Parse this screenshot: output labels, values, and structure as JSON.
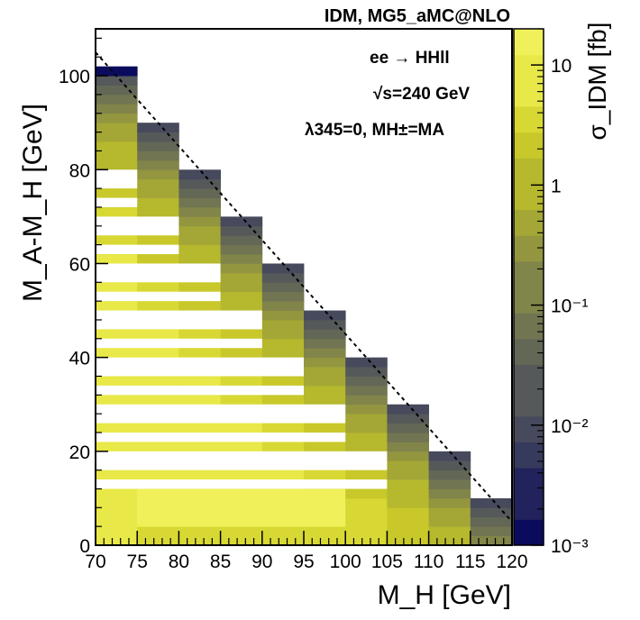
{
  "chart_data": {
    "type": "heatmap",
    "title": "IDM, MG5_aMC@NLO",
    "xlabel": "M_H [GeV]",
    "ylabel": "M_A-M_H [GeV]",
    "zlabel": "σ_IDM [fb]",
    "xlim": [
      70,
      120
    ],
    "ylim": [
      0,
      110
    ],
    "zlim": [
      0.001,
      20
    ],
    "x_ticks": [
      70,
      75,
      80,
      85,
      90,
      95,
      100,
      105,
      110,
      115,
      120
    ],
    "y_ticks": [
      0,
      20,
      40,
      60,
      80,
      100
    ],
    "z_ticks": [
      {
        "value": 10,
        "label": "10"
      },
      {
        "value": 1,
        "label": "1"
      },
      {
        "value": 0.1,
        "label": "10⁻¹"
      },
      {
        "value": 0.01,
        "label": "10⁻²"
      },
      {
        "value": 0.001,
        "label": "10⁻³"
      }
    ],
    "x_bin_width": 5,
    "y_bin_width": 2,
    "columns": [
      {
        "x": 70,
        "ymax": 102
      },
      {
        "x": 75,
        "ymax": 90
      },
      {
        "x": 80,
        "ymax": 80
      },
      {
        "x": 85,
        "ymax": 70
      },
      {
        "x": 90,
        "ymax": 60
      },
      {
        "x": 95,
        "ymax": 50
      },
      {
        "x": 100,
        "ymax": 40
      },
      {
        "x": 105,
        "ymax": 30
      },
      {
        "x": 110,
        "ymax": 20
      },
      {
        "x": 115,
        "ymax": 10
      }
    ],
    "empty_bins": [
      {
        "x_from": 70,
        "x_to": 75,
        "y_from": 76,
        "y_to": 80
      },
      {
        "x_from": 70,
        "x_to": 75,
        "y_from": 72,
        "y_to": 74
      },
      {
        "x_from": 70,
        "x_to": 80,
        "y_from": 66,
        "y_to": 70
      },
      {
        "x_from": 70,
        "x_to": 80,
        "y_from": 62,
        "y_to": 64
      },
      {
        "x_from": 70,
        "x_to": 85,
        "y_from": 56,
        "y_to": 60
      },
      {
        "x_from": 70,
        "x_to": 85,
        "y_from": 52,
        "y_to": 54
      },
      {
        "x_from": 70,
        "x_to": 90,
        "y_from": 46,
        "y_to": 50
      },
      {
        "x_from": 70,
        "x_to": 90,
        "y_from": 42,
        "y_to": 44
      },
      {
        "x_from": 70,
        "x_to": 95,
        "y_from": 36,
        "y_to": 40
      },
      {
        "x_from": 70,
        "x_to": 95,
        "y_from": 32,
        "y_to": 34
      },
      {
        "x_from": 70,
        "x_to": 100,
        "y_from": 26,
        "y_to": 30
      },
      {
        "x_from": 70,
        "x_to": 100,
        "y_from": 22,
        "y_to": 24
      },
      {
        "x_from": 70,
        "x_to": 105,
        "y_from": 16,
        "y_to": 20
      },
      {
        "x_from": 70,
        "x_to": 105,
        "y_from": 12,
        "y_to": 14
      }
    ],
    "kinematic_limit": {
      "from": [
        70,
        105
      ],
      "to": [
        120,
        5
      ],
      "style": "dashed"
    },
    "annotations": {
      "process": "ee → HHll",
      "energy": "√s=240 GeV",
      "couplings": "λ345=0,  MH±=MA"
    }
  },
  "colors": {
    "palette": [
      "#0b0b5e",
      "#22225c",
      "#363a5d",
      "#474a5c",
      "#55595a",
      "#636756",
      "#727551",
      "#828549",
      "#93963f",
      "#a4a735",
      "#b6b82d",
      "#c8c82b",
      "#d8d834",
      "#e8e848",
      "#f0f05a"
    ],
    "line": "#000000"
  }
}
